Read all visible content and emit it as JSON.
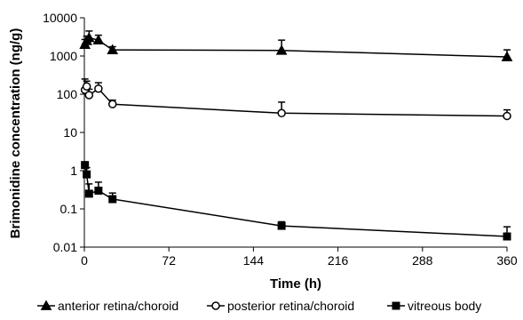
{
  "chart_data": {
    "type": "line",
    "title": "",
    "xlabel": "Time (h)",
    "ylabel": "Brimonidine concentration (ng/g)",
    "x_scale": "linear",
    "y_scale": "log",
    "xlim": [
      0,
      360
    ],
    "ylim": [
      0.01,
      10000
    ],
    "x_ticks": [
      "0",
      "72",
      "144",
      "216",
      "288",
      "360"
    ],
    "y_ticks": [
      "0.01",
      "0.1",
      "1",
      "10",
      "100",
      "1000",
      "10000"
    ],
    "grid": false,
    "legend_position": "bottom",
    "series": [
      {
        "name": "anterior retina/choroid",
        "marker": "triangle-filled",
        "x": [
          0.5,
          2,
          4,
          12,
          24,
          168,
          360
        ],
        "y": [
          2000,
          2500,
          3000,
          2600,
          1450,
          1400,
          950
        ],
        "err_up": [
          700,
          800,
          1500,
          900,
          300,
          1200,
          500
        ]
      },
      {
        "name": "posterior retina/choroid",
        "marker": "circle-open",
        "x": [
          0.5,
          2,
          4,
          12,
          24,
          168,
          360
        ],
        "y": [
          130,
          160,
          95,
          140,
          55,
          32,
          27
        ],
        "err_up": [
          120,
          60,
          40,
          60,
          15,
          30,
          12
        ]
      },
      {
        "name": "vitreous body",
        "marker": "square-filled",
        "x": [
          0.5,
          2,
          4,
          12,
          24,
          168,
          360
        ],
        "y": [
          1.4,
          0.8,
          0.25,
          0.3,
          0.18,
          0.036,
          0.019
        ],
        "err_up": [
          0.3,
          0.4,
          0.2,
          0.2,
          0.08,
          0.01,
          0.015
        ]
      }
    ]
  }
}
